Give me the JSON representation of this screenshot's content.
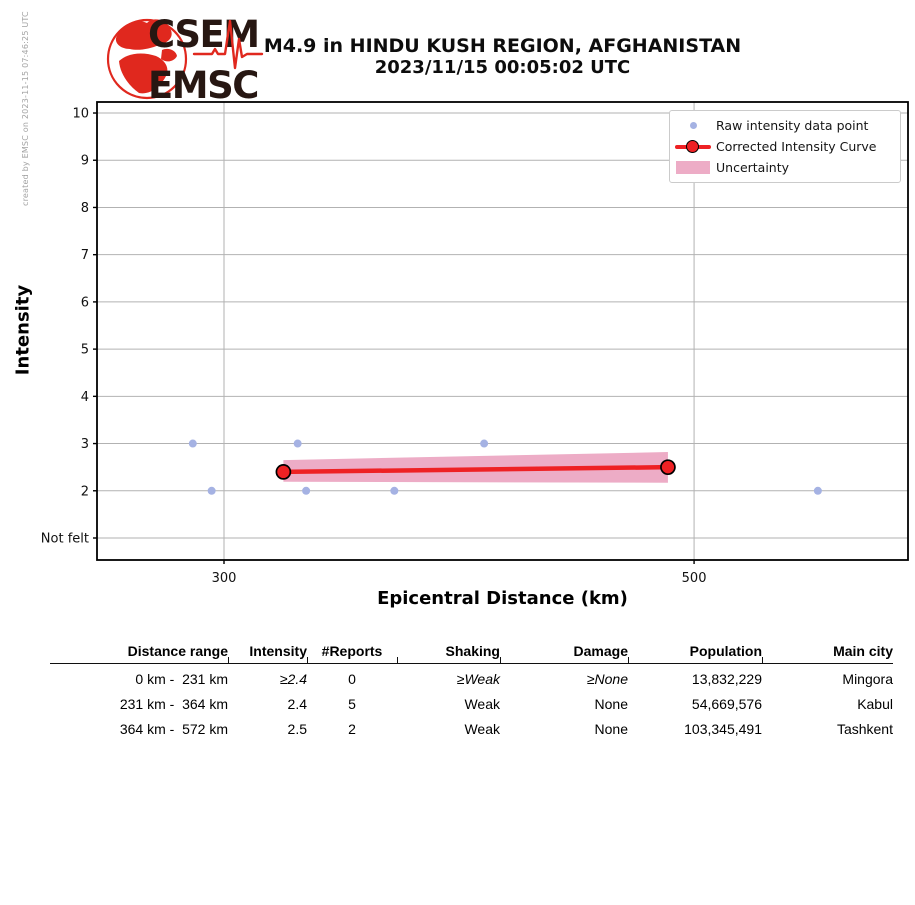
{
  "watermark": "created by EMSC on 2023-11-15 07:46:25 UTC",
  "logo": {
    "line1": "CSEM",
    "line2": "EMSC",
    "red": "#e0281e",
    "dark": "#271712"
  },
  "header": {
    "title_line1": "M4.9 in HINDU KUSH REGION, AFGHANISTAN",
    "title_line2": "2023/11/15 00:05:02 UTC"
  },
  "chart_data": {
    "type": "line",
    "title": "",
    "xlabel": "Epicentral Distance (km)",
    "ylabel": "Intensity",
    "x_scale": "log",
    "x_range_km": [
      261,
      631
    ],
    "y_range": [
      0.53,
      10.23
    ],
    "grid": true,
    "legend_position": "upper right",
    "x_ticks": [
      {
        "value": 300,
        "label": "300"
      },
      {
        "value": 500,
        "label": "500"
      }
    ],
    "y_ticks": [
      {
        "value": 10,
        "label": "10"
      },
      {
        "value": 9,
        "label": "9"
      },
      {
        "value": 8,
        "label": "8"
      },
      {
        "value": 7,
        "label": "7"
      },
      {
        "value": 6,
        "label": "6"
      },
      {
        "value": 5,
        "label": "5"
      },
      {
        "value": 4,
        "label": "4"
      },
      {
        "value": 3,
        "label": "3"
      },
      {
        "value": 2,
        "label": "2"
      },
      {
        "value": 1,
        "label": "Not felt"
      }
    ],
    "legend": [
      {
        "label": "Raw intensity data point",
        "marker": "dot",
        "color": "#a5b2e3"
      },
      {
        "label": "Corrected Intensity Curve",
        "marker": "line-circle",
        "color": "#ee2124"
      },
      {
        "label": "Uncertainty",
        "marker": "band",
        "color": "#edacc6"
      }
    ],
    "raw_points": {
      "name": "Raw intensity data point",
      "color": "#a5b2e3",
      "points": [
        [
          290,
          3
        ],
        [
          296,
          2
        ],
        [
          325,
          3
        ],
        [
          328,
          2
        ],
        [
          361,
          2
        ],
        [
          398,
          3
        ],
        [
          572,
          2
        ]
      ]
    },
    "corrected_curve": {
      "name": "Corrected Intensity Curve",
      "color": "#ee2124",
      "points": [
        [
          320,
          2.4
        ],
        [
          486,
          2.5
        ]
      ]
    },
    "uncertainty_band": {
      "name": "Uncertainty",
      "color": "#edacc6",
      "upper": [
        [
          320,
          2.65
        ],
        [
          486,
          2.82
        ]
      ],
      "lower": [
        [
          320,
          2.19
        ],
        [
          486,
          2.17
        ]
      ]
    },
    "colors": {
      "grid": "#b2b2b2",
      "frame": "#000000",
      "tick_label": "#111111"
    }
  },
  "table": {
    "headers": [
      "Distance range",
      "Intensity",
      "#Reports",
      "Shaking",
      "Damage",
      "Population",
      "Main city"
    ],
    "rows": [
      {
        "cells": [
          "0 km -  231 km",
          "≥2.4",
          "0",
          "≥Weak",
          "≥None",
          "13,832,229",
          "Mingora"
        ],
        "italics": [
          false,
          true,
          false,
          true,
          true,
          false,
          false
        ]
      },
      {
        "cells": [
          "231 km -  364 km",
          "2.4",
          "5",
          "Weak",
          "None",
          "54,669,576",
          "Kabul"
        ],
        "italics": [
          false,
          false,
          false,
          false,
          false,
          false,
          false
        ]
      },
      {
        "cells": [
          "364 km -  572 km",
          "2.5",
          "2",
          "Weak",
          "None",
          "103,345,491",
          "Tashkent"
        ],
        "italics": [
          false,
          false,
          false,
          false,
          false,
          false,
          false
        ]
      }
    ]
  }
}
